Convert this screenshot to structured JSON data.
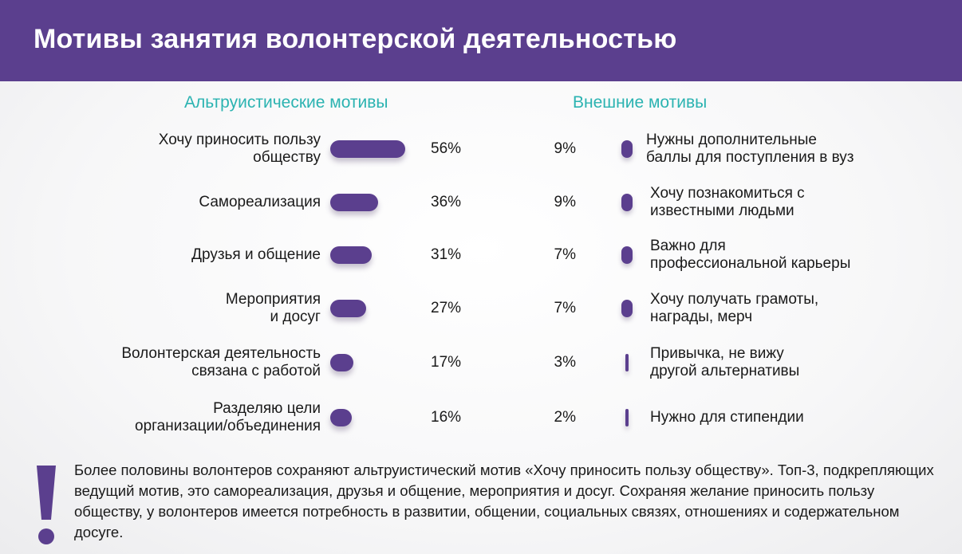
{
  "header": {
    "title": "Мотивы занятия волонтерской деятельностью"
  },
  "chart_data": [
    {
      "type": "bar",
      "orientation": "horizontal",
      "title": "Альтруистические мотивы",
      "categories": [
        "Хочу приносить пользу\nобществу",
        "Самореализация",
        "Друзья и общение",
        "Мероприятия\nи досуг",
        "Волонтерская деятельность\nсвязана с работой",
        "Разделяю цели\nорганизации/объединения"
      ],
      "values": [
        56,
        36,
        31,
        27,
        17,
        16
      ],
      "value_labels": [
        "56%",
        "36%",
        "31%",
        "27%",
        "17%",
        "16%"
      ],
      "unit": "%",
      "xlim": [
        0,
        56
      ],
      "grid": false,
      "color": "#5b3f8e"
    },
    {
      "type": "bar",
      "orientation": "horizontal",
      "title": "Внешние мотивы",
      "categories": [
        "Нужны дополнительные\nбаллы для поступления в вуз",
        "Хочу познакомиться с\nизвестными людьми",
        "Важно для\nпрофессиональной карьеры",
        "Хочу получать грамоты,\nнаграды, мерч",
        "Привычка, не вижу\nдругой альтернативы",
        "Нужно для стипендии"
      ],
      "values": [
        9,
        9,
        7,
        7,
        3,
        2
      ],
      "value_labels": [
        "9%",
        "9%",
        "7%",
        "7%",
        "3%",
        "2%"
      ],
      "unit": "%",
      "grid": false,
      "color": "#5b3f8e"
    }
  ],
  "note": {
    "icon": "exclamation-icon",
    "text_before": "Более половины волонтеров сохраняют альтруистический мотив «Хочу приносить пользу обществу». Топ-3, подкрепляющих ведущий мотив, это самореализация, друзья и общение, мероприятия и досуг. Сохраняя желание приносить пользу обществу, у волонтеров имеется потребность в развитии, общении, социальных связях, отношениях и содержательном досуге."
  },
  "colors": {
    "accent": "#5b3f8e",
    "section_title": "#2bb3b1"
  }
}
